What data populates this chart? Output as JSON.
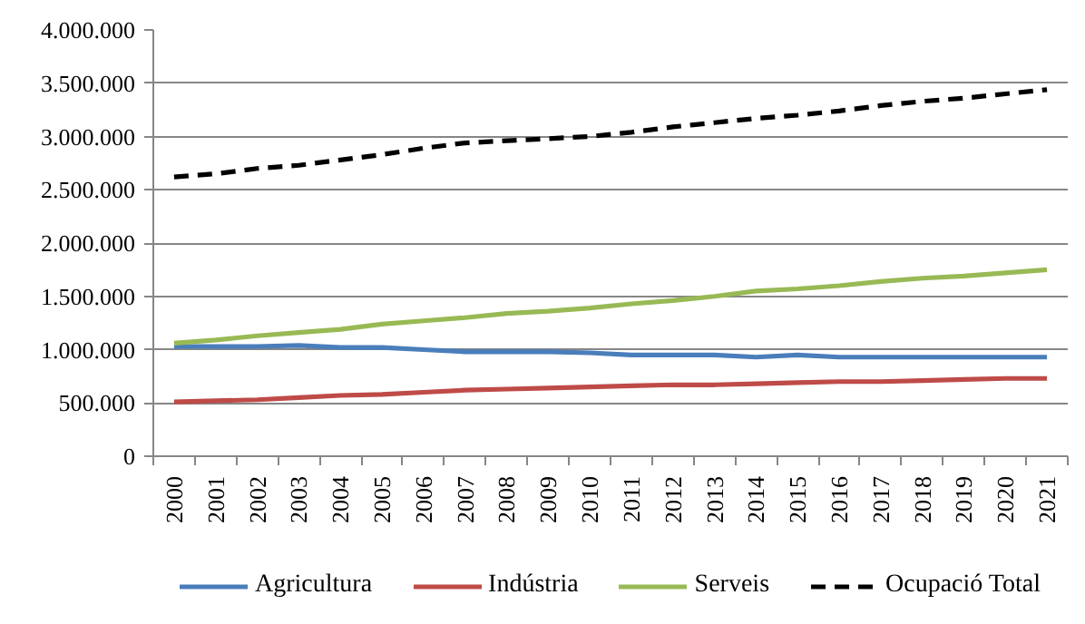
{
  "chart_data": {
    "type": "line",
    "categories": [
      "2000",
      "2001",
      "2002",
      "2003",
      "2004",
      "2005",
      "2006",
      "2007",
      "2008",
      "2009",
      "2010",
      "2011",
      "2012",
      "2013",
      "2014",
      "2015",
      "2016",
      "2017",
      "2018",
      "2019",
      "2020",
      "2021"
    ],
    "series": [
      {
        "name": "Agricultura",
        "color": "#4a7ebb",
        "values": [
          1030000,
          1030000,
          1030000,
          1040000,
          1020000,
          1020000,
          1000000,
          980000,
          980000,
          980000,
          970000,
          950000,
          950000,
          950000,
          930000,
          950000,
          930000,
          930000,
          930000,
          930000,
          930000,
          930000
        ]
      },
      {
        "name": "Indústria",
        "color": "#be4b48",
        "values": [
          510000,
          520000,
          530000,
          550000,
          570000,
          580000,
          600000,
          620000,
          630000,
          640000,
          650000,
          660000,
          670000,
          670000,
          680000,
          690000,
          700000,
          700000,
          710000,
          720000,
          730000,
          730000
        ]
      },
      {
        "name": "Serveis",
        "color": "#98b954",
        "values": [
          1060000,
          1090000,
          1130000,
          1160000,
          1190000,
          1240000,
          1270000,
          1300000,
          1340000,
          1360000,
          1390000,
          1430000,
          1460000,
          1500000,
          1550000,
          1570000,
          1600000,
          1640000,
          1670000,
          1690000,
          1720000,
          1750000
        ]
      },
      {
        "name": "Ocupació Total",
        "color": "#000000",
        "line_style": "dashed",
        "values": [
          2620000,
          2650000,
          2700000,
          2730000,
          2780000,
          2830000,
          2890000,
          2940000,
          2960000,
          2980000,
          3000000,
          3040000,
          3090000,
          3130000,
          3170000,
          3200000,
          3240000,
          3290000,
          3330000,
          3360000,
          3400000,
          3440000
        ]
      }
    ],
    "ylim": [
      0,
      4000000
    ],
    "yticks": [
      0,
      {
        "value": 500000,
        "label": "500.000"
      },
      {
        "value": 1000000,
        "label": "1.000.000"
      },
      {
        "value": 1500000,
        "label": "1.500.000"
      },
      {
        "value": 2000000,
        "label": "2.000.000"
      },
      {
        "value": 2500000,
        "label": "2.500.000"
      },
      {
        "value": 3000000,
        "label": "3.000.000"
      },
      {
        "value": 3500000,
        "label": "3.500.000"
      },
      {
        "value": 4000000,
        "label": "4.000.000"
      }
    ],
    "grid": "y",
    "legend": "bottom",
    "line_style": "solid"
  }
}
